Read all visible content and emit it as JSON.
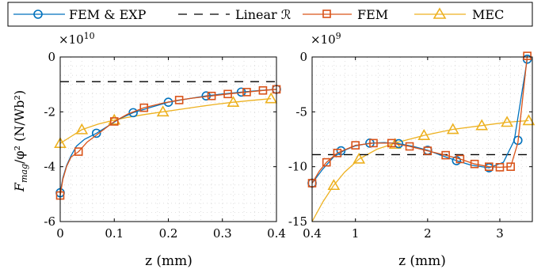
{
  "legend": {
    "entries": [
      {
        "label": "FEM & EXP",
        "color": "#0072BD",
        "marker": "circle",
        "line": "solid"
      },
      {
        "label": "Linear ℛ",
        "color": "#000000",
        "marker": "none",
        "line": "dashed"
      },
      {
        "label": "FEM",
        "color": "#D95319",
        "marker": "square",
        "line": "solid"
      },
      {
        "label": "MEC",
        "color": "#EDB120",
        "marker": "triangle",
        "line": "solid"
      }
    ]
  },
  "shared_ylabel": {
    "main": "F",
    "sub": "mag",
    "rest": "/φ² (N/Wb²)"
  },
  "chart_data": [
    {
      "type": "line",
      "xlabel": "z (mm)",
      "ylabel": "F_mag/φ² (N/Wb²)",
      "exponent_base": "×10",
      "exponent_power": "10",
      "xlim": [
        0,
        0.4
      ],
      "ylim": [
        -6,
        0
      ],
      "xticks": [
        0,
        0.1,
        0.2,
        0.3,
        0.4
      ],
      "xtick_labels": [
        "0",
        "0.1",
        "0.2",
        "0.3",
        "0.4"
      ],
      "yticks": [
        -6,
        -4,
        -2,
        0
      ],
      "ytick_labels": [
        "-6",
        "-4",
        "-2",
        "0"
      ],
      "grid": true,
      "series": [
        {
          "name": "FEM & EXP",
          "color": "#0072BD",
          "marker": "circle",
          "curve_x": [
            0,
            0.005,
            0.012,
            0.02,
            0.03,
            0.045,
            0.067,
            0.09,
            0.11,
            0.135,
            0.17,
            0.2,
            0.235,
            0.27,
            0.3,
            0.335,
            0.37,
            0.4
          ],
          "curve_y": [
            -4.95,
            -4.4,
            -3.95,
            -3.6,
            -3.25,
            -3.0,
            -2.78,
            -2.5,
            -2.25,
            -2.03,
            -1.82,
            -1.65,
            -1.53,
            -1.42,
            -1.35,
            -1.28,
            -1.22,
            -1.18
          ],
          "marker_x": [
            0,
            0.067,
            0.135,
            0.2,
            0.27,
            0.335,
            0.4
          ],
          "marker_y": [
            -4.95,
            -2.78,
            -2.03,
            -1.65,
            -1.42,
            -1.28,
            -1.18
          ]
        },
        {
          "name": "Linear ℛ",
          "color": "#000000",
          "marker": "none",
          "dash": true,
          "curve_x": [
            0,
            0.4
          ],
          "curve_y": [
            -0.9,
            -0.9
          ],
          "marker_x": [],
          "marker_y": []
        },
        {
          "name": "FEM",
          "color": "#D95319",
          "marker": "square",
          "curve_x": [
            0,
            0.005,
            0.012,
            0.02,
            0.034,
            0.05,
            0.07,
            0.1,
            0.125,
            0.155,
            0.19,
            0.22,
            0.245,
            0.28,
            0.31,
            0.345,
            0.375,
            0.4
          ],
          "curve_y": [
            -5.05,
            -4.45,
            -3.98,
            -3.65,
            -3.45,
            -3.1,
            -2.8,
            -2.35,
            -2.08,
            -1.85,
            -1.68,
            -1.57,
            -1.5,
            -1.42,
            -1.35,
            -1.28,
            -1.22,
            -1.18
          ],
          "marker_x": [
            0,
            0.034,
            0.1,
            0.155,
            0.22,
            0.28,
            0.31,
            0.345,
            0.375,
            0.4
          ],
          "marker_y": [
            -5.05,
            -3.45,
            -2.35,
            -1.85,
            -1.57,
            -1.42,
            -1.35,
            -1.28,
            -1.22,
            -1.18
          ]
        },
        {
          "name": "MEC",
          "color": "#EDB120",
          "marker": "triangle",
          "curve_x": [
            0,
            0.02,
            0.04,
            0.07,
            0.1,
            0.125,
            0.155,
            0.19,
            0.225,
            0.26,
            0.29,
            0.32,
            0.355,
            0.39
          ],
          "curve_y": [
            -3.15,
            -2.9,
            -2.65,
            -2.45,
            -2.3,
            -2.2,
            -2.1,
            -2.0,
            -1.9,
            -1.8,
            -1.72,
            -1.65,
            -1.58,
            -1.52
          ],
          "marker_x": [
            0,
            0.04,
            0.1,
            0.19,
            0.32,
            0.39
          ],
          "marker_y": [
            -3.15,
            -2.65,
            -2.3,
            -2.0,
            -1.65,
            -1.52
          ]
        }
      ]
    },
    {
      "type": "line",
      "xlabel": "z (mm)",
      "ylabel": "",
      "exponent_base": "×10",
      "exponent_power": "9",
      "xlim": [
        0.4,
        3.45
      ],
      "ylim": [
        -15,
        0
      ],
      "xticks": [
        0.4,
        1,
        2,
        3
      ],
      "xtick_labels": [
        "0.4",
        "1",
        "2",
        "3"
      ],
      "yticks": [
        -15,
        -10,
        -5,
        0
      ],
      "ytick_labels": [
        "-15",
        "-10",
        "-5",
        "0"
      ],
      "grid": true,
      "series": [
        {
          "name": "FEM & EXP",
          "color": "#0072BD",
          "marker": "circle",
          "curve_x": [
            0.4,
            0.55,
            0.7,
            0.85,
            1.0,
            1.2,
            1.4,
            1.6,
            1.8,
            2.0,
            2.2,
            2.4,
            2.6,
            2.85,
            3.05,
            3.2,
            3.3,
            3.38
          ],
          "curve_y": [
            -11.5,
            -10.2,
            -9.1,
            -8.5,
            -8.1,
            -7.85,
            -7.8,
            -7.9,
            -8.15,
            -8.5,
            -9.0,
            -9.45,
            -9.85,
            -10.1,
            -9.6,
            -7.6,
            -3.5,
            -0.2
          ],
          "marker_x": [
            0.4,
            0.8,
            1.2,
            1.6,
            2.0,
            2.4,
            2.85,
            3.25,
            3.38
          ],
          "marker_y": [
            -11.5,
            -8.55,
            -7.85,
            -7.9,
            -8.5,
            -9.45,
            -10.1,
            -7.6,
            -0.2
          ]
        },
        {
          "name": "Linear ℛ",
          "color": "#000000",
          "marker": "none",
          "dash": true,
          "curve_x": [
            0.4,
            3.45
          ],
          "curve_y": [
            -8.9,
            -8.9
          ],
          "marker_x": [],
          "marker_y": []
        },
        {
          "name": "FEM",
          "color": "#D95319",
          "marker": "square",
          "curve_x": [
            0.4,
            0.5,
            0.6,
            0.75,
            1.0,
            1.25,
            1.5,
            1.75,
            2.0,
            2.25,
            2.45,
            2.65,
            2.85,
            3.0,
            3.15,
            3.25,
            3.32,
            3.38
          ],
          "curve_y": [
            -11.5,
            -10.4,
            -9.6,
            -8.75,
            -8.05,
            -7.85,
            -7.85,
            -8.15,
            -8.55,
            -8.95,
            -9.3,
            -9.75,
            -10.0,
            -10.05,
            -10.0,
            -7.8,
            -3.5,
            0.1
          ],
          "marker_x": [
            0.4,
            0.6,
            0.75,
            1.0,
            1.25,
            1.5,
            1.75,
            2.0,
            2.25,
            2.45,
            2.65,
            2.85,
            3.0,
            3.15,
            3.38
          ],
          "marker_y": [
            -11.5,
            -9.6,
            -8.75,
            -8.05,
            -7.85,
            -7.85,
            -8.15,
            -8.55,
            -8.95,
            -9.3,
            -9.75,
            -10.0,
            -10.05,
            -10.0,
            0.1
          ]
        },
        {
          "name": "MEC",
          "color": "#EDB120",
          "marker": "triangle",
          "curve_x": [
            0.4,
            0.55,
            0.7,
            0.85,
            1.05,
            1.3,
            1.6,
            1.95,
            2.35,
            2.75,
            3.1,
            3.4
          ],
          "curve_y": [
            -15.0,
            -13.2,
            -11.7,
            -10.5,
            -9.3,
            -8.4,
            -7.75,
            -7.15,
            -6.6,
            -6.25,
            -5.95,
            -5.8
          ],
          "marker_x": [
            0.7,
            1.05,
            1.55,
            1.95,
            2.35,
            2.75,
            3.1,
            3.4
          ],
          "marker_y": [
            -11.7,
            -9.3,
            -7.95,
            -7.15,
            -6.6,
            -6.25,
            -5.95,
            -5.8
          ]
        }
      ]
    }
  ]
}
